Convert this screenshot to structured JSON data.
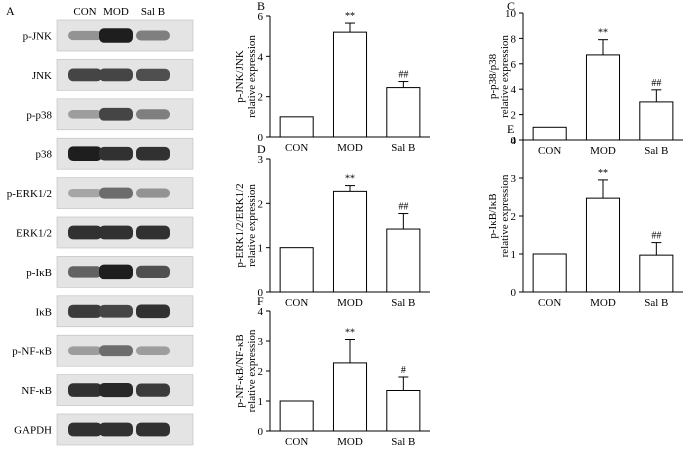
{
  "figure": {
    "panel_a": {
      "letter": "A",
      "groups": [
        "CON",
        "MOD",
        "Sal B"
      ],
      "blots": [
        {
          "label": "p-JNK",
          "intensities": [
            0.35,
            0.95,
            0.45
          ]
        },
        {
          "label": "JNK",
          "intensities": [
            0.75,
            0.75,
            0.7
          ]
        },
        {
          "label": "p-p38",
          "intensities": [
            0.3,
            0.75,
            0.45
          ]
        },
        {
          "label": "p38",
          "intensities": [
            0.95,
            0.85,
            0.85
          ]
        },
        {
          "label": "p-ERK1/2",
          "intensities": [
            0.25,
            0.55,
            0.35
          ]
        },
        {
          "label": "ERK1/2",
          "intensities": [
            0.85,
            0.85,
            0.85
          ]
        },
        {
          "label": "p-IκB",
          "intensities": [
            0.6,
            0.95,
            0.7
          ]
        },
        {
          "label": "IκB",
          "intensities": [
            0.8,
            0.75,
            0.85
          ]
        },
        {
          "label": "p-NF-κB",
          "intensities": [
            0.3,
            0.55,
            0.3
          ]
        },
        {
          "label": "NF-κB",
          "intensities": [
            0.85,
            0.9,
            0.8
          ]
        },
        {
          "label": "GAPDH",
          "intensities": [
            0.85,
            0.85,
            0.85
          ]
        }
      ]
    }
  },
  "chart_data": [
    {
      "letter": "B",
      "type": "bar",
      "categories": [
        "CON",
        "MOD",
        "Sal B"
      ],
      "values": [
        1.0,
        5.2,
        2.45
      ],
      "errors": [
        0,
        0.45,
        0.3
      ],
      "significance": [
        "",
        "**",
        "##"
      ],
      "ylabel": [
        "p-JNK/JNK",
        "relative expression"
      ],
      "ylim": [
        0,
        6
      ],
      "yticks": [
        0,
        2,
        4,
        6
      ]
    },
    {
      "letter": "C",
      "type": "bar",
      "categories": [
        "CON",
        "MOD",
        "Sal B"
      ],
      "values": [
        1.0,
        6.7,
        3.0
      ],
      "errors": [
        0,
        1.2,
        0.95
      ],
      "significance": [
        "",
        "**",
        "##"
      ],
      "ylabel": [
        "p-p38/p38",
        "relative expression"
      ],
      "ylim": [
        0,
        10
      ],
      "yticks": [
        0,
        2,
        4,
        6,
        8,
        10
      ]
    },
    {
      "letter": "D",
      "type": "bar",
      "categories": [
        "CON",
        "MOD",
        "Sal B"
      ],
      "values": [
        1.0,
        2.27,
        1.42
      ],
      "errors": [
        0,
        0.13,
        0.35
      ],
      "significance": [
        "",
        "**",
        "##"
      ],
      "ylabel": [
        "p-ERK1/2/ERK1/2",
        "relative expression"
      ],
      "ylim": [
        0,
        3
      ],
      "yticks": [
        0,
        1,
        2,
        3
      ]
    },
    {
      "letter": "E",
      "type": "bar",
      "categories": [
        "CON",
        "MOD",
        "Sal B"
      ],
      "values": [
        1.0,
        2.47,
        0.97
      ],
      "errors": [
        0,
        0.48,
        0.33
      ],
      "significance": [
        "",
        "**",
        "##"
      ],
      "ylabel": [
        "p-IκB/IκB",
        "relative expression"
      ],
      "ylim": [
        0,
        4
      ],
      "yticks": [
        0,
        1,
        2,
        3,
        4
      ]
    },
    {
      "letter": "F",
      "type": "bar",
      "categories": [
        "CON",
        "MOD",
        "Sal B"
      ],
      "values": [
        1.0,
        2.27,
        1.35
      ],
      "errors": [
        0,
        0.78,
        0.45
      ],
      "significance": [
        "",
        "**",
        "#"
      ],
      "ylabel": [
        "p-NF-κB/NF-κB",
        "relative expression"
      ],
      "ylim": [
        0,
        4
      ],
      "yticks": [
        0,
        1,
        2,
        3,
        4
      ]
    }
  ]
}
